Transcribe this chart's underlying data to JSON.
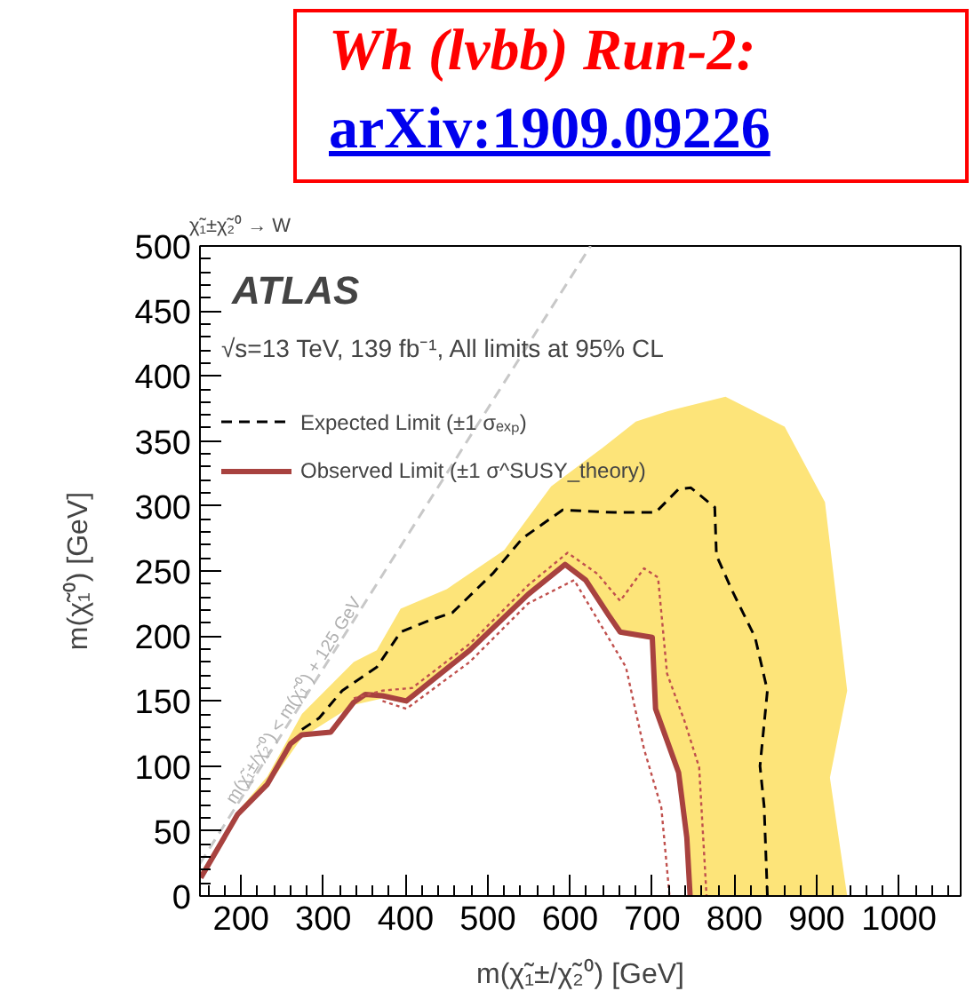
{
  "chart_data": {
    "type": "line",
    "title": "Wh (lvbb) Run-2:",
    "subtitle": "arXiv:1909.09226",
    "xlabel": "m(χ̃₁±/χ̃₂⁰) [GeV]",
    "ylabel": "m(χ̃₁⁰) [GeV]",
    "xlim": [
      150,
      1075
    ],
    "ylim": [
      0,
      500
    ],
    "xticks": [
      200,
      300,
      400,
      500,
      600,
      700,
      800,
      900,
      1000
    ],
    "yticks": [
      0,
      50,
      100,
      150,
      200,
      250,
      300,
      350,
      400,
      450,
      500
    ],
    "grid": false,
    "legend": "top left",
    "annotations": [
      "χ̃₁±χ̃₂⁰ → W",
      "ATLAS",
      "√s=13 TeV, 139 fb⁻¹, All limits at 95% CL",
      {
        "text": "m(χ̃₁±/χ̃₂⁰) < m(χ̃₁⁰) + 125 GeV",
        "x": 265,
        "y": 150
      }
    ],
    "series": [
      {
        "type": "area",
        "color": "#fde479",
        "x": [
          150,
          196,
          232,
          274,
          337,
          365,
          394,
          450,
          520,
          577,
          640,
          680,
          719,
          789,
          861,
          910,
          937,
          916,
          937,
          747,
          742,
          732,
          704,
          700,
          661,
          619,
          594,
          549,
          478,
          401,
          372,
          337,
          274,
          232,
          196,
          150
        ],
        "values": [
          17,
          65,
          92,
          140,
          180,
          189,
          221,
          236,
          266,
          315,
          345,
          365,
          373,
          384,
          361,
          303,
          158,
          91,
          0,
          0,
          45,
          93,
          142,
          197,
          201,
          241,
          253,
          230,
          187,
          148,
          152,
          147,
          122,
          84,
          61,
          13
        ]
      },
      {
        "name": "Expected Limit (±1 σₑₓₚ)",
        "line_style": "dashed",
        "color": "#000000",
        "x": [
          274,
          295,
          323,
          365,
          394,
          429,
          457,
          506,
          542,
          591,
          654,
          704,
          732,
          747,
          776,
          778,
          797,
          825,
          840,
          831,
          836,
          840
        ],
        "values": [
          128,
          137,
          158,
          176,
          203,
          212,
          218,
          248,
          275,
          297,
          295,
          295,
          313,
          314,
          299,
          262,
          235,
          199,
          158,
          100,
          69,
          0
        ]
      },
      {
        "name": "Observed Limit (±1 σ^SUSY_theory)",
        "line_style": "solid",
        "color": "#a8423f",
        "x": [
          151,
          196,
          232,
          260,
          274,
          309,
          337,
          351,
          372,
          401,
          478,
          549,
          594,
          619,
          647,
          661,
          700,
          704,
          732,
          742,
          746
        ],
        "values": [
          14,
          63,
          86,
          117,
          124,
          126,
          149,
          155,
          154,
          150,
          189,
          232,
          255,
          243,
          216,
          203,
          199,
          144,
          95,
          45,
          0
        ]
      },
      {
        "line_style": "dotted",
        "color": "#c0504d",
        "x": [
          337,
          372,
          408,
          478,
          549,
          597,
          633,
          661,
          690,
          707,
          718,
          739,
          757,
          766
        ],
        "values": [
          152,
          158,
          160,
          194,
          239,
          264,
          248,
          227,
          252,
          245,
          171,
          135,
          99,
          0
        ]
      },
      {
        "line_style": "dotted",
        "color": "#c0504d",
        "x": [
          372,
          401,
          478,
          549,
          605,
          668,
          690,
          711,
          721
        ],
        "values": [
          150,
          144,
          180,
          225,
          243,
          176,
          113,
          68,
          0
        ]
      },
      {
        "line_style": "dashed",
        "color": "#c8c8c8",
        "x": [
          150,
          625
        ],
        "values": [
          25,
          500
        ]
      }
    ]
  }
}
